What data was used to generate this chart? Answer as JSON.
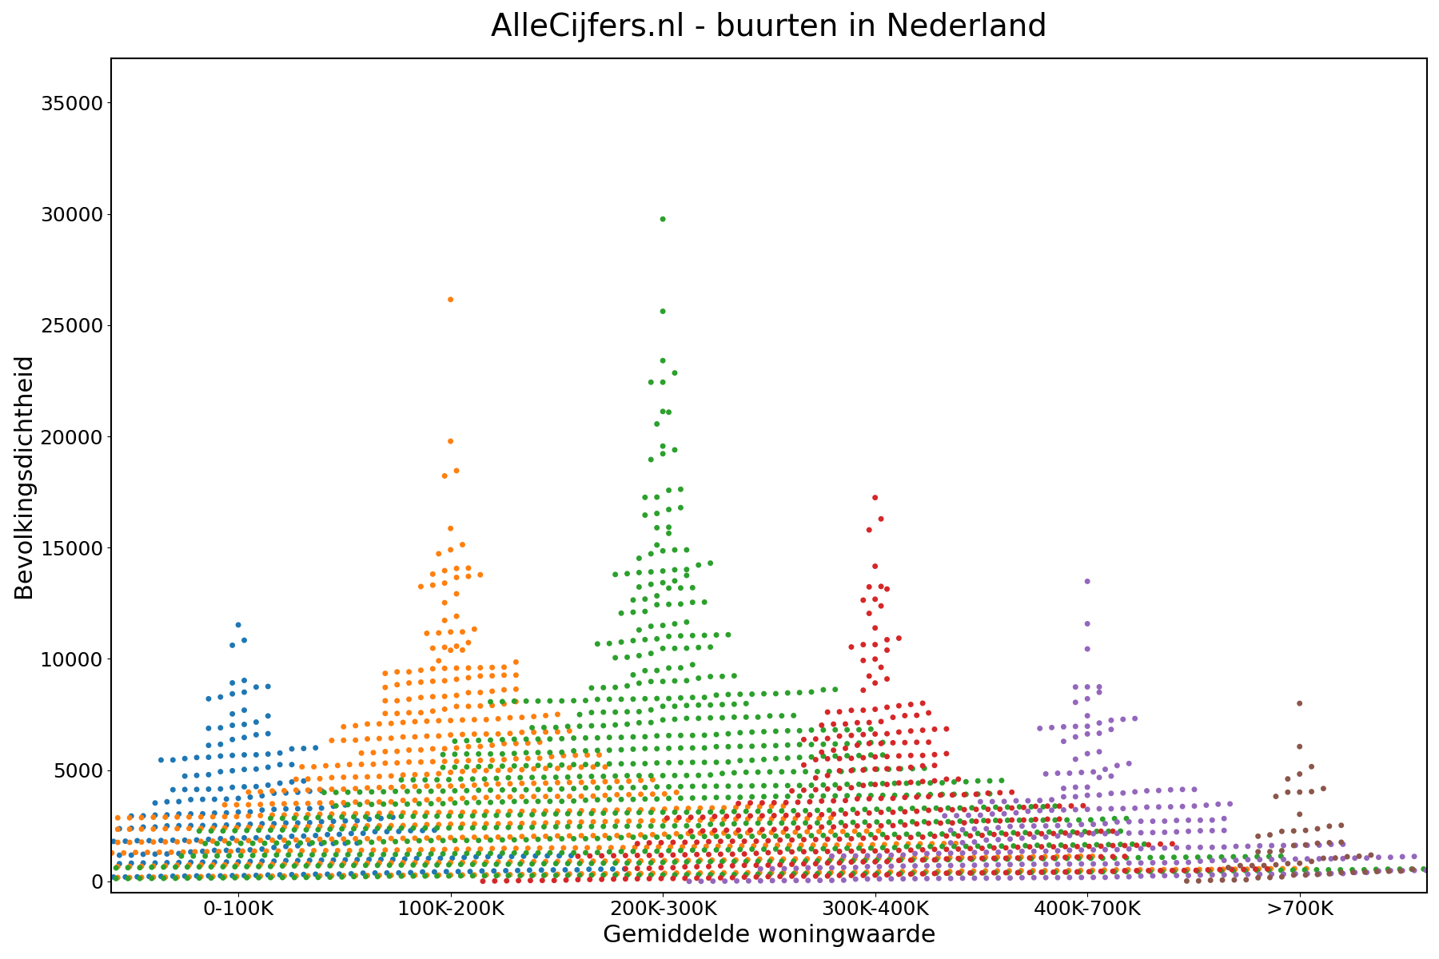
{
  "title": "AlleCijfers.nl - buurten in Nederland",
  "xlabel": "Gemiddelde woningwaarde",
  "ylabel": "Bevolkingsdichtheid",
  "categories": [
    "0-100K",
    "100K-200K",
    "200K-300K",
    "300K-400K",
    "400K-700K",
    ">700K"
  ],
  "colors": [
    "#1f77b4",
    "#ff7f0e",
    "#2ca02c",
    "#d62728",
    "#9467bd",
    "#8c564b"
  ],
  "ylim": [
    -500,
    37000
  ],
  "yticks": [
    0,
    5000,
    10000,
    15000,
    20000,
    25000,
    30000,
    35000
  ],
  "title_fontsize": 28,
  "label_fontsize": 22,
  "tick_fontsize": 18,
  "n_points": [
    300,
    800,
    1000,
    400,
    300,
    60
  ],
  "exp_scales": [
    2500,
    3200,
    4000,
    3200,
    2200,
    1600
  ],
  "max_vals": [
    24000,
    33500,
    36000,
    29000,
    25000,
    15500
  ],
  "seed": 42,
  "dot_size": 5.0
}
